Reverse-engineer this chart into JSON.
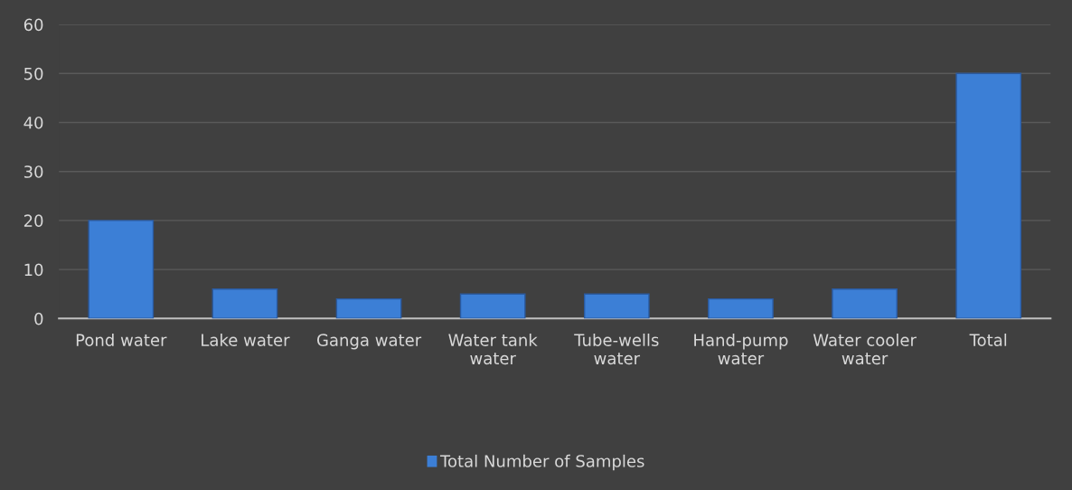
{
  "chart_data": {
    "type": "bar",
    "categories": [
      "Pond water",
      "Lake water",
      "Ganga water",
      "Water tank\nwater",
      "Tube-wells\nwater",
      "Hand-pump\nwater",
      "Water cooler\nwater",
      "Total"
    ],
    "series": [
      {
        "name": "Total Number of Samples",
        "color": "#3c7fd6",
        "values": [
          20,
          6,
          4,
          5,
          5,
          4,
          6,
          50
        ]
      }
    ],
    "ylim": [
      0,
      60
    ],
    "yticks": [
      0,
      10,
      20,
      30,
      40,
      50,
      60
    ],
    "grid": "y",
    "legend": "bottom"
  }
}
